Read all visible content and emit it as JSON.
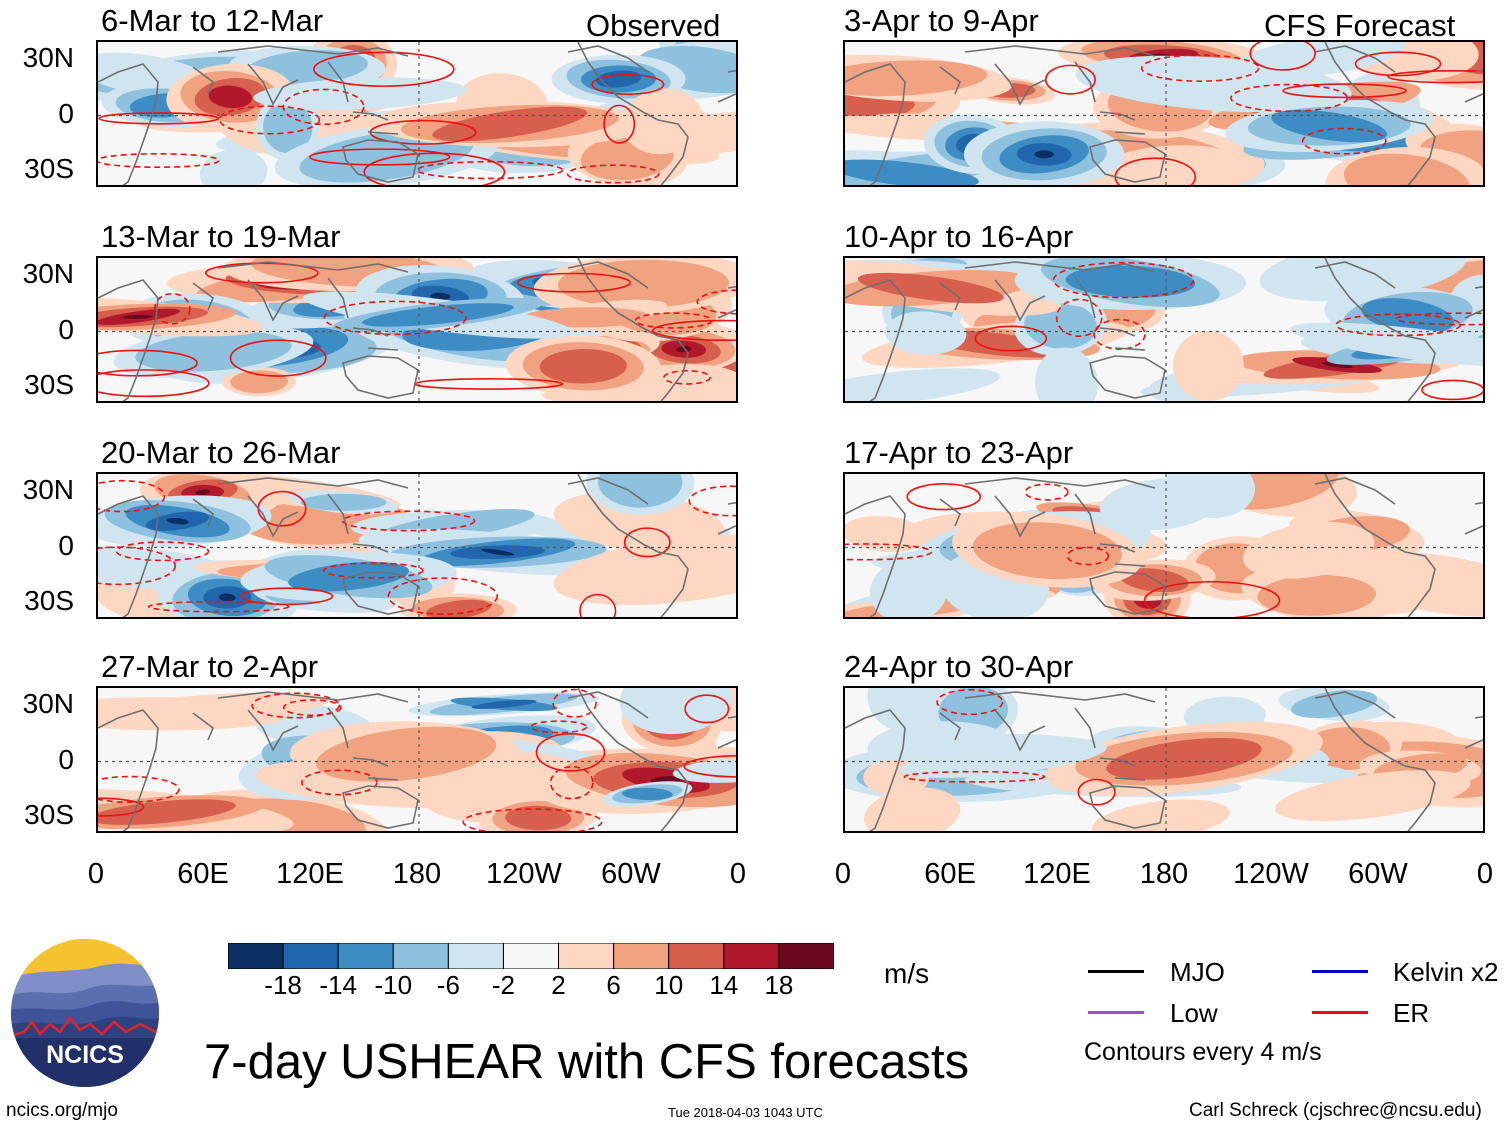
{
  "chart_data": {
    "type": "heatmap",
    "title": "7-day USHEAR with CFS forecasts",
    "variable": "USHEAR",
    "units": "m/s",
    "contour_note": "Contours every 4 m/s",
    "x_ticks": [
      "0",
      "60E",
      "120E",
      "180",
      "120W",
      "60W",
      "0"
    ],
    "y_ticks": [
      "30N",
      "0",
      "30S"
    ],
    "observed_label": "Observed",
    "forecast_label": "CFS Forecast",
    "observed_panels": [
      {
        "period": "6-Mar to 12-Mar"
      },
      {
        "period": "13-Mar to 19-Mar"
      },
      {
        "period": "20-Mar to 26-Mar"
      },
      {
        "period": "27-Mar to 2-Apr"
      }
    ],
    "forecast_panels": [
      {
        "period": "3-Apr to 9-Apr"
      },
      {
        "period": "10-Apr to 16-Apr"
      },
      {
        "period": "17-Apr to 23-Apr"
      },
      {
        "period": "24-Apr to 30-Apr"
      }
    ],
    "colorbar": {
      "labels": [
        "-18",
        "-14",
        "-10",
        "-6",
        "-2",
        "2",
        "6",
        "10",
        "14",
        "18"
      ],
      "colors": [
        "#0b2f63",
        "#2166ac",
        "#3d8cc4",
        "#8ec1de",
        "#d1e5f0",
        "#f7f7f7",
        "#fdd7c2",
        "#f1a280",
        "#d6604d",
        "#b2182b",
        "#6b0a1f"
      ]
    },
    "legend": [
      {
        "label": "MJO",
        "color": "#000000"
      },
      {
        "label": "Kelvin x2",
        "color": "#0000cc"
      },
      {
        "label": "Low",
        "color": "#a24ad6"
      },
      {
        "label": "ER",
        "color": "#dd1111"
      }
    ]
  },
  "branding": {
    "logo_text": "NCICS",
    "site": "ncics.org/mjo",
    "timestamp": "Tue 2018-04-03 1043 UTC",
    "author": "Carl Schreck (cjschrec@ncsu.edu)"
  }
}
